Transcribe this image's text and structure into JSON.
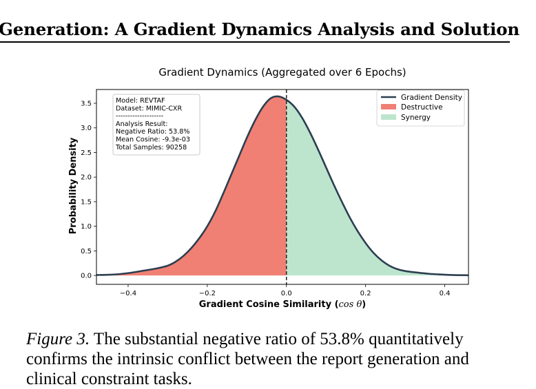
{
  "header": {
    "title": "Generation: A Gradient Dynamics Analysis and Solution"
  },
  "chart_data": {
    "type": "area",
    "title": "Gradient Dynamics (Aggregated over 6 Epochs)",
    "xlabel_text": "Gradient Cosine Similarity (",
    "xlabel_math": "cos θ",
    "xlabel_close": ")",
    "ylabel": "Probability Density",
    "xlim": [
      -0.48,
      0.46
    ],
    "ylim": [
      -0.18,
      3.78
    ],
    "xticks": [
      -0.4,
      -0.2,
      0.0,
      0.2,
      0.4
    ],
    "xtick_labels": [
      "−0.4",
      "−0.2",
      "0.0",
      "0.2",
      "0.4"
    ],
    "yticks": [
      0.0,
      0.5,
      1.0,
      1.5,
      2.0,
      2.5,
      3.0,
      3.5
    ],
    "ytick_labels": [
      "0.0",
      "0.5",
      "1.0",
      "1.5",
      "2.0",
      "2.5",
      "3.0",
      "3.5"
    ],
    "grid": false,
    "divider_x": 0.0,
    "series": [
      {
        "name": "Gradient Density",
        "color": "#2c3e50",
        "x": [
          -0.48,
          -0.45,
          -0.42,
          -0.39,
          -0.36,
          -0.33,
          -0.3,
          -0.28,
          -0.26,
          -0.24,
          -0.22,
          -0.2,
          -0.18,
          -0.16,
          -0.14,
          -0.12,
          -0.1,
          -0.08,
          -0.06,
          -0.04,
          -0.02,
          0.0,
          0.02,
          0.04,
          0.06,
          0.08,
          0.1,
          0.12,
          0.14,
          0.16,
          0.18,
          0.2,
          0.22,
          0.24,
          0.26,
          0.28,
          0.3,
          0.33,
          0.36,
          0.39,
          0.42,
          0.46
        ],
        "y": [
          0.01,
          0.015,
          0.03,
          0.06,
          0.1,
          0.14,
          0.2,
          0.28,
          0.4,
          0.56,
          0.76,
          1.0,
          1.3,
          1.66,
          2.04,
          2.42,
          2.8,
          3.14,
          3.42,
          3.6,
          3.64,
          3.57,
          3.43,
          3.2,
          2.9,
          2.56,
          2.2,
          1.84,
          1.5,
          1.18,
          0.9,
          0.66,
          0.46,
          0.31,
          0.2,
          0.13,
          0.09,
          0.06,
          0.035,
          0.02,
          0.01,
          0.005
        ]
      }
    ],
    "regions": [
      {
        "name": "Destructive",
        "color": "#f08074",
        "from": -0.48,
        "to": 0.0
      },
      {
        "name": "Synergy",
        "color": "#bde5cd",
        "from": 0.0,
        "to": 0.46
      }
    ],
    "legend_position": "upper right",
    "legend": [
      "Gradient Density",
      "Destructive",
      "Synergy"
    ],
    "annotation_lines": [
      "Model: REVTAF",
      "Dataset: MIMIC-CXR",
      "--------------------",
      "Analysis Result:",
      "Negative Ratio: 53.8%",
      "Mean Cosine: -9.3e-03",
      "Total Samples: 90258"
    ]
  },
  "caption": {
    "label": "Figure 3.",
    "text": " The substantial negative ratio of 53.8% quantitatively confirms the intrinsic conflict between the report generation and clinical constraint tasks."
  }
}
